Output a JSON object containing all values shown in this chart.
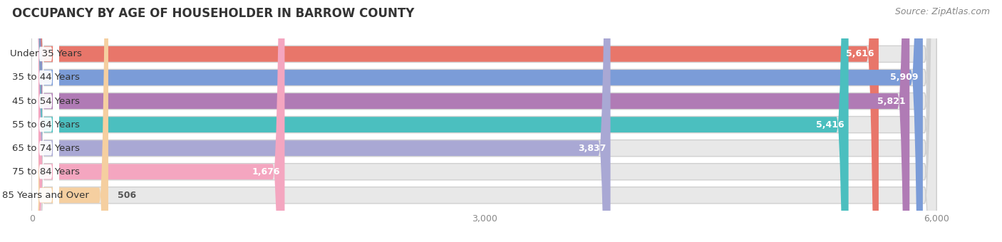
{
  "title": "OCCUPANCY BY AGE OF HOUSEHOLDER IN BARROW COUNTY",
  "source": "Source: ZipAtlas.com",
  "categories": [
    "Under 35 Years",
    "35 to 44 Years",
    "45 to 54 Years",
    "55 to 64 Years",
    "65 to 74 Years",
    "75 to 84 Years",
    "85 Years and Over"
  ],
  "values": [
    5616,
    5909,
    5821,
    5416,
    3837,
    1676,
    506
  ],
  "bar_colors": [
    "#E8766A",
    "#7B9CD8",
    "#B07BB5",
    "#4BBFBF",
    "#A9A8D4",
    "#F4A6C0",
    "#F5CFA0"
  ],
  "xlim_min": -180,
  "xlim_max": 6400,
  "xmax": 6000,
  "xticks": [
    0,
    3000,
    6000
  ],
  "background_color": "#f5f5f5",
  "bar_bg_color": "#e8e8e8",
  "bar_border_color": "#d0d0d0",
  "title_fontsize": 12,
  "source_fontsize": 9,
  "label_fontsize": 9.5,
  "value_fontsize": 9
}
